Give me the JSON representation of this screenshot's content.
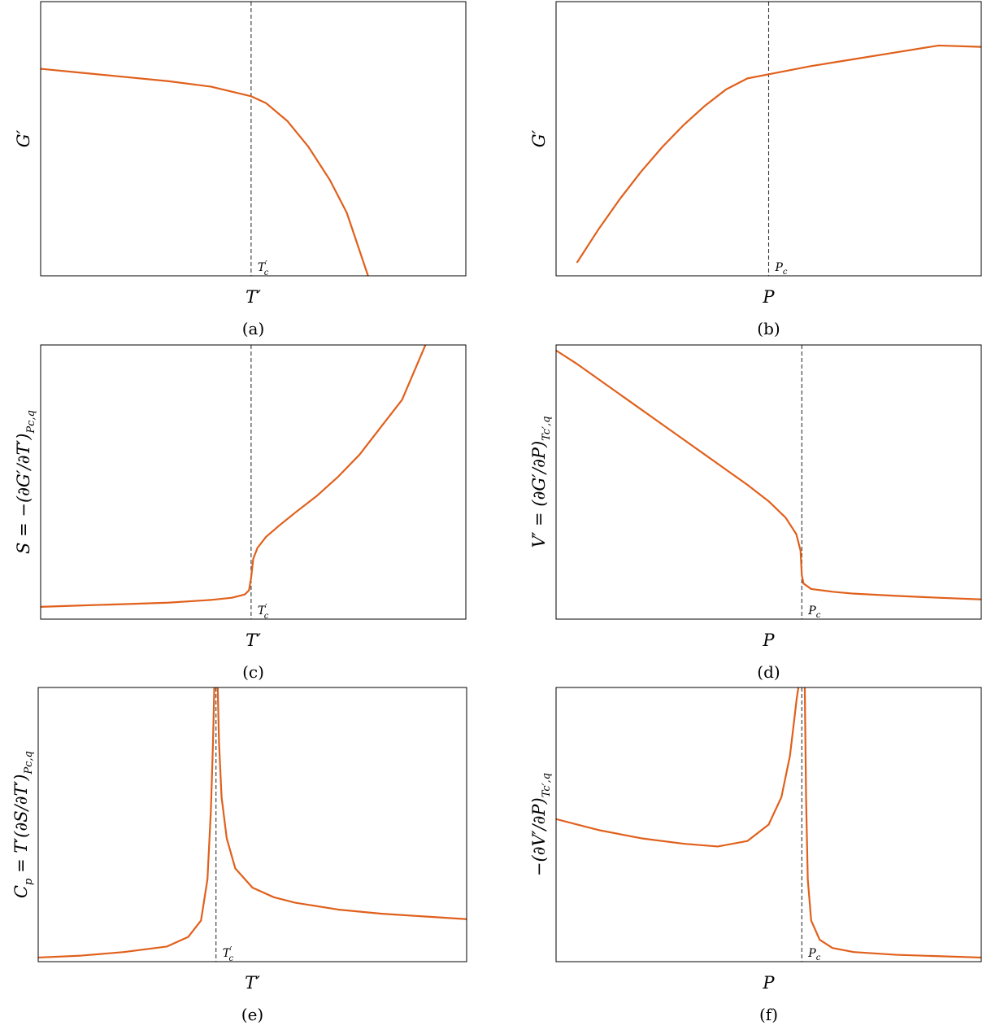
{
  "colors": {
    "curve": "#E0601C",
    "frame": "#000000",
    "dashed": "#333333"
  },
  "chart_data": [
    {
      "id": "a",
      "type": "line",
      "caption": "(a)",
      "xlabel": "T′",
      "ylabel": "G′",
      "ylabel_sub": "",
      "critical_label": "T",
      "critical_label_sub": "c",
      "critical_label_prime": "′",
      "xlim": [
        0,
        1
      ],
      "ylim": [
        0,
        1
      ],
      "critical_x": 0.495,
      "series": [
        {
          "x": [
            0.0,
            0.1,
            0.2,
            0.3,
            0.4,
            0.495,
            0.53,
            0.58,
            0.63,
            0.68,
            0.72,
            0.77
          ],
          "y": [
            0.755,
            0.74,
            0.725,
            0.71,
            0.69,
            0.655,
            0.63,
            0.565,
            0.47,
            0.35,
            0.23,
            0.0
          ]
        }
      ]
    },
    {
      "id": "b",
      "type": "line",
      "caption": "(b)",
      "xlabel": "P",
      "ylabel": "G′",
      "ylabel_sub": "",
      "critical_label": "P",
      "critical_label_sub": "c",
      "critical_label_prime": "",
      "xlim": [
        0,
        1
      ],
      "ylim": [
        0,
        1
      ],
      "critical_x": 0.5,
      "series": [
        {
          "x": [
            0.05,
            0.1,
            0.15,
            0.2,
            0.25,
            0.3,
            0.35,
            0.4,
            0.45,
            0.5,
            0.6,
            0.7,
            0.8,
            0.9,
            1.0
          ],
          "y": [
            0.05,
            0.17,
            0.28,
            0.38,
            0.47,
            0.55,
            0.62,
            0.68,
            0.72,
            0.735,
            0.765,
            0.79,
            0.815,
            0.84,
            0.835
          ]
        }
      ]
    },
    {
      "id": "c",
      "type": "line",
      "caption": "(c)",
      "xlabel": "T′",
      "ylabel": "S = −(∂G′/∂T′)",
      "ylabel_sub": "Pc,q",
      "critical_label": "T",
      "critical_label_sub": "c",
      "critical_label_prime": "′",
      "xlim": [
        0,
        1
      ],
      "ylim": [
        0,
        1
      ],
      "critical_x": 0.495,
      "series": [
        {
          "x": [
            0.0,
            0.1,
            0.2,
            0.3,
            0.4,
            0.45,
            0.48,
            0.49,
            0.495,
            0.5,
            0.51,
            0.53,
            0.56,
            0.6,
            0.65,
            0.7,
            0.75,
            0.8,
            0.85,
            0.905
          ],
          "y": [
            0.045,
            0.05,
            0.055,
            0.06,
            0.07,
            0.078,
            0.09,
            0.105,
            0.15,
            0.22,
            0.26,
            0.3,
            0.34,
            0.39,
            0.45,
            0.52,
            0.6,
            0.7,
            0.8,
            1.0
          ]
        }
      ]
    },
    {
      "id": "d",
      "type": "line",
      "caption": "(d)",
      "xlabel": "P",
      "ylabel": "V′ = (∂G′/∂P)",
      "ylabel_sub": "Tc′,q",
      "critical_label": "P",
      "critical_label_sub": "c",
      "critical_label_prime": "",
      "xlim": [
        0,
        1
      ],
      "ylim": [
        0,
        1
      ],
      "critical_x": 0.578,
      "series": [
        {
          "x": [
            0.0,
            0.05,
            0.1,
            0.15,
            0.2,
            0.25,
            0.3,
            0.35,
            0.4,
            0.45,
            0.5,
            0.54,
            0.565,
            0.575,
            0.578,
            0.582,
            0.6,
            0.65,
            0.7,
            0.8,
            0.9,
            1.0
          ],
          "y": [
            0.98,
            0.93,
            0.875,
            0.82,
            0.765,
            0.71,
            0.655,
            0.6,
            0.545,
            0.49,
            0.43,
            0.37,
            0.31,
            0.25,
            0.16,
            0.13,
            0.11,
            0.1,
            0.093,
            0.085,
            0.078,
            0.072
          ]
        }
      ]
    },
    {
      "id": "e",
      "type": "line",
      "caption": "(e)",
      "xlabel": "T′",
      "ylabel": "C",
      "ylabel_sub": "p",
      "ylabel_rest": " = T′(∂S/∂T′)",
      "ylabel_rest_sub": "Pc,q",
      "critical_label": "T",
      "critical_label_sub": "c",
      "critical_label_prime": "′",
      "xlim": [
        0,
        1
      ],
      "ylim": [
        0,
        1
      ],
      "critical_x": 0.415,
      "series": [
        {
          "x": [
            0.0,
            0.1,
            0.2,
            0.3,
            0.35,
            0.38,
            0.395,
            0.403,
            0.408,
            0.411
          ],
          "y": [
            0.015,
            0.022,
            0.035,
            0.055,
            0.09,
            0.15,
            0.3,
            0.55,
            0.8,
            1.0
          ]
        },
        {
          "x": [
            0.419,
            0.422,
            0.428,
            0.44,
            0.46,
            0.5,
            0.55,
            0.6,
            0.7,
            0.8,
            0.9,
            1.0
          ],
          "y": [
            1.0,
            0.8,
            0.6,
            0.45,
            0.34,
            0.27,
            0.235,
            0.215,
            0.19,
            0.175,
            0.165,
            0.155
          ]
        }
      ]
    },
    {
      "id": "f",
      "type": "line",
      "caption": "(f)",
      "xlabel": "P",
      "ylabel": "−(∂V′/∂P)",
      "ylabel_sub": "Tc′,q",
      "critical_label": "P",
      "critical_label_sub": "c",
      "critical_label_prime": "",
      "xlim": [
        0,
        1
      ],
      "ylim": [
        0,
        1
      ],
      "critical_x": 0.578,
      "series": [
        {
          "x": [
            0.0,
            0.1,
            0.2,
            0.3,
            0.38,
            0.45,
            0.5,
            0.53,
            0.55,
            0.56,
            0.566,
            0.57
          ],
          "y": [
            0.52,
            0.48,
            0.45,
            0.43,
            0.42,
            0.44,
            0.5,
            0.6,
            0.75,
            0.88,
            0.96,
            1.0
          ]
        },
        {
          "x": [
            0.585,
            0.588,
            0.592,
            0.6,
            0.62,
            0.65,
            0.7,
            0.8,
            0.9,
            1.0
          ],
          "y": [
            1.0,
            0.6,
            0.3,
            0.15,
            0.08,
            0.05,
            0.035,
            0.025,
            0.02,
            0.015
          ]
        }
      ]
    }
  ]
}
